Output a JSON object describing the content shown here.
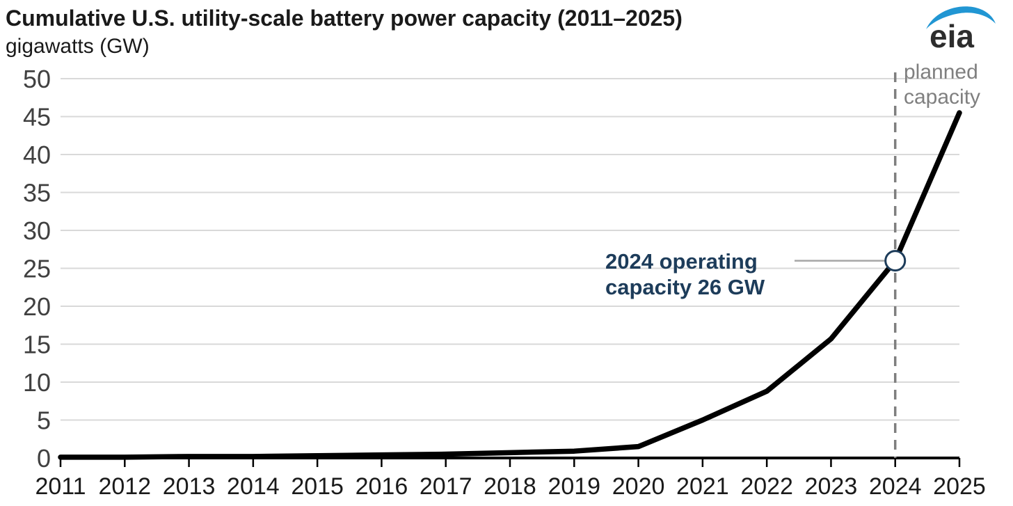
{
  "header": {
    "title": "Cumulative U.S. utility-scale battery power capacity (2011–2025)",
    "units": "gigawatts (GW)"
  },
  "logo": {
    "text": "eia"
  },
  "chart_data": {
    "type": "line",
    "x": [
      2011,
      2012,
      2013,
      2014,
      2015,
      2016,
      2017,
      2018,
      2019,
      2020,
      2021,
      2022,
      2023,
      2024,
      2025
    ],
    "values": [
      0.1,
      0.1,
      0.2,
      0.2,
      0.3,
      0.4,
      0.5,
      0.7,
      0.9,
      1.5,
      5.0,
      8.8,
      15.7,
      26.0,
      45.5
    ],
    "title": "Cumulative U.S. utility-scale battery power capacity (2011–2025)",
    "xlabel": "",
    "ylabel": "gigawatts (GW)",
    "ylim": [
      0,
      50
    ],
    "yticks": [
      0,
      5,
      10,
      15,
      20,
      25,
      30,
      35,
      40,
      45,
      50
    ],
    "grid": true,
    "legend_position": "none",
    "marker": {
      "year": 2024,
      "value": 26
    },
    "planned_divider_year": 2024,
    "annotations": {
      "operating": {
        "line1": "2024 operating",
        "line2": "capacity 26 GW"
      },
      "planned": {
        "line1": "planned",
        "line2": "capacity"
      }
    }
  },
  "colors": {
    "line": "#000000",
    "grid": "#d9d9d9",
    "axis": "#000000",
    "tick_label_x": "#1a1a1a",
    "tick_label_y": "#404040",
    "dashed": "#7f7f7f",
    "planned_label": "#7f7f7f",
    "annotation": "#1d3c5a",
    "leader": "#a6a6a6",
    "marker_fill": "#ffffff",
    "marker_stroke": "#1d3c5a",
    "logo_swoosh": "#2196d3",
    "logo_text": "#2d2d2d"
  }
}
